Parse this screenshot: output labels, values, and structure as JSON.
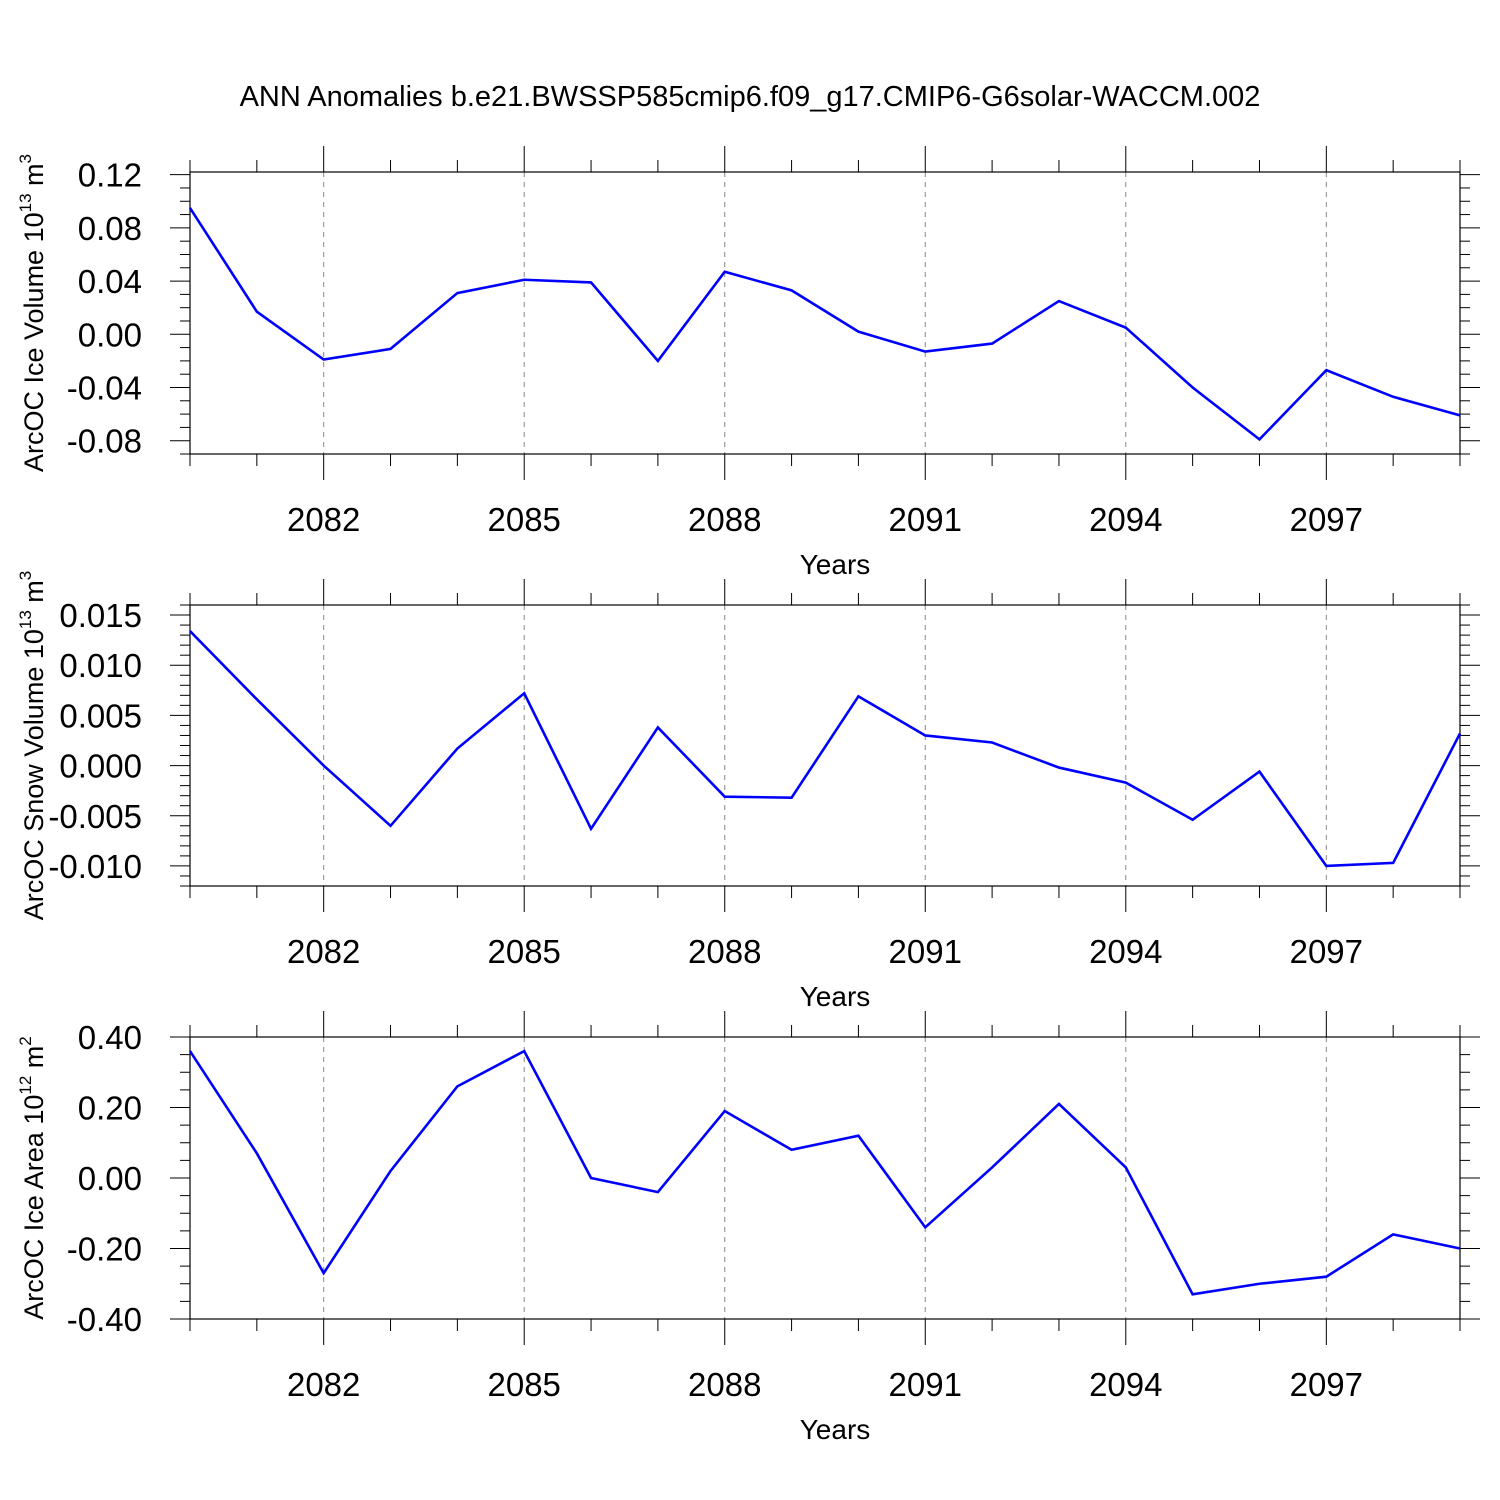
{
  "figure": {
    "title": "ANN Anomalies b.e21.BWSSP585cmip6.f09_g17.CMIP6-G6solar-WACCM.002",
    "line_color": "#0000ff"
  },
  "chart_data": [
    {
      "type": "line",
      "xlabel": "Years",
      "ylabel": {
        "main": "ArcOC Ice Volume 10",
        "exp": "13",
        "unit": " m",
        "unit_exp": "3"
      },
      "x": [
        2080,
        2081,
        2082,
        2083,
        2084,
        2085,
        2086,
        2087,
        2088,
        2089,
        2090,
        2091,
        2092,
        2093,
        2094,
        2095,
        2096,
        2097,
        2098,
        2099
      ],
      "x_ticks": [
        2082,
        2085,
        2088,
        2091,
        2094,
        2097
      ],
      "x_tick_labels": [
        "2082",
        "2085",
        "2088",
        "2091",
        "2094",
        "2097"
      ],
      "xlim": [
        2080,
        2099
      ],
      "ylim": [
        -0.09,
        0.122
      ],
      "y_ticks": [
        -0.08,
        -0.04,
        0.0,
        0.04,
        0.08,
        0.12
      ],
      "y_tick_labels": [
        "-0.08",
        "-0.04",
        "0.00",
        "0.04",
        "0.08",
        "0.12"
      ],
      "y_minor_step": 0.01,
      "series": [
        {
          "values": [
            0.095,
            0.017,
            -0.019,
            -0.011,
            0.031,
            0.041,
            0.039,
            -0.02,
            0.047,
            0.033,
            0.002,
            -0.013,
            -0.007,
            0.025,
            0.005,
            -0.04,
            -0.079,
            -0.027,
            -0.047,
            -0.061
          ]
        }
      ]
    },
    {
      "type": "line",
      "xlabel": "Years",
      "ylabel": {
        "main": "ArcOC Snow Volume 10",
        "exp": "13",
        "unit": " m",
        "unit_exp": "3"
      },
      "x": [
        2080,
        2081,
        2082,
        2083,
        2084,
        2085,
        2086,
        2087,
        2088,
        2089,
        2090,
        2091,
        2092,
        2093,
        2094,
        2095,
        2096,
        2097,
        2098,
        2099
      ],
      "x_ticks": [
        2082,
        2085,
        2088,
        2091,
        2094,
        2097
      ],
      "x_tick_labels": [
        "2082",
        "2085",
        "2088",
        "2091",
        "2094",
        "2097"
      ],
      "xlim": [
        2080,
        2099
      ],
      "ylim": [
        -0.012,
        0.016
      ],
      "y_ticks": [
        -0.01,
        -0.005,
        0.0,
        0.005,
        0.01,
        0.015
      ],
      "y_tick_labels": [
        "-0.010",
        "-0.005",
        "0.000",
        "0.005",
        "0.010",
        "0.015"
      ],
      "y_minor_step": 0.001,
      "series": [
        {
          "values": [
            0.0134,
            0.0066,
            0.0,
            -0.006,
            0.0017,
            0.0072,
            -0.0063,
            0.0038,
            -0.0031,
            -0.0032,
            0.0069,
            0.003,
            0.0023,
            -0.0002,
            -0.0017,
            -0.0054,
            -0.0006,
            -0.01,
            -0.0097,
            0.0032
          ]
        }
      ]
    },
    {
      "type": "line",
      "xlabel": "Years",
      "ylabel": {
        "main": "ArcOC Ice Area 10",
        "exp": "12",
        "unit": " m",
        "unit_exp": "2"
      },
      "x": [
        2080,
        2081,
        2082,
        2083,
        2084,
        2085,
        2086,
        2087,
        2088,
        2089,
        2090,
        2091,
        2092,
        2093,
        2094,
        2095,
        2096,
        2097,
        2098,
        2099
      ],
      "x_ticks": [
        2082,
        2085,
        2088,
        2091,
        2094,
        2097
      ],
      "x_tick_labels": [
        "2082",
        "2085",
        "2088",
        "2091",
        "2094",
        "2097"
      ],
      "xlim": [
        2080,
        2099
      ],
      "ylim": [
        -0.4,
        0.4
      ],
      "y_ticks": [
        -0.4,
        -0.2,
        0.0,
        0.2,
        0.4
      ],
      "y_tick_labels": [
        "-0.40",
        "-0.20",
        "0.00",
        "0.20",
        "0.40"
      ],
      "y_minor_step": 0.05,
      "series": [
        {
          "values": [
            0.36,
            0.07,
            -0.27,
            0.02,
            0.26,
            0.36,
            0.0,
            -0.04,
            0.19,
            0.08,
            0.12,
            -0.14,
            0.03,
            0.21,
            0.03,
            -0.33,
            -0.3,
            -0.28,
            -0.16,
            -0.2
          ]
        }
      ]
    }
  ]
}
